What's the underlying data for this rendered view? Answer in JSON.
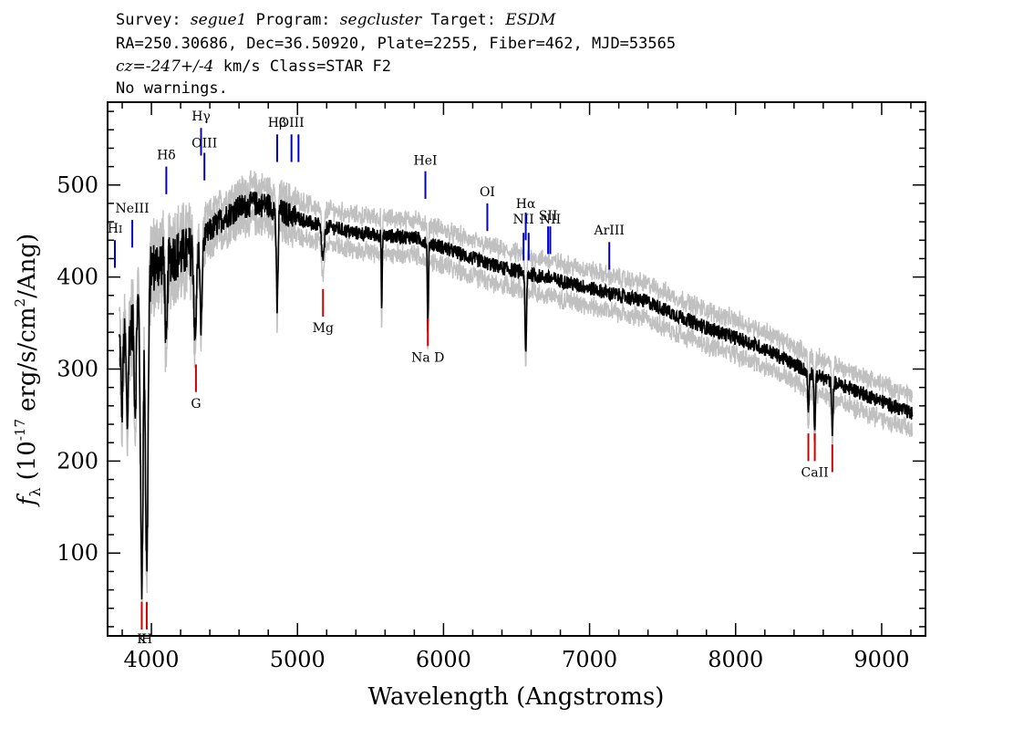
{
  "header": {
    "line1": {
      "survey_label": "Survey:",
      "survey": "segue1",
      "program_label": "Program:",
      "program": "segcluster",
      "target_label": "Target:",
      "target": "ESDM"
    },
    "line2": "RA=250.30686, Dec=36.50920, Plate=2255, Fiber=462, MJD=53565",
    "line3": {
      "cz_label": "cz=",
      "cz_value": "-247+/-4",
      "rest": "km/s Class=STAR F2"
    },
    "line4": "No warnings."
  },
  "chart_data": {
    "type": "line",
    "xlabel": "Wavelength (Angstroms)",
    "ylabel_prefix": "f",
    "ylabel_sub": "λ",
    "ylabel_mid": "(10",
    "ylabel_exp": "-17",
    "ylabel_units": "erg/s/cm",
    "ylabel_exp2": "2",
    "ylabel_end": "/Ang)",
    "xlim": [
      3700,
      9300
    ],
    "ylim": [
      10,
      590
    ],
    "xticks": [
      4000,
      5000,
      6000,
      7000,
      8000,
      9000
    ],
    "xtick_labels": [
      "4000",
      "5000",
      "6000",
      "7000",
      "8000",
      "9000"
    ],
    "yticks": [
      100,
      200,
      300,
      400,
      500
    ],
    "ytick_labels": [
      "100",
      "200",
      "300",
      "400",
      "500"
    ],
    "colors": {
      "flux": "#000000",
      "error": "#c0c0c0",
      "emission": "#0000cc",
      "absorption": "#cc0000"
    },
    "continuum": [
      [
        3780,
        330
      ],
      [
        3830,
        330
      ],
      [
        3880,
        355
      ],
      [
        3920,
        390
      ],
      [
        4000,
        410
      ],
      [
        4100,
        420
      ],
      [
        4200,
        425
      ],
      [
        4300,
        430
      ],
      [
        4400,
        450
      ],
      [
        4500,
        465
      ],
      [
        4600,
        475
      ],
      [
        4700,
        480
      ],
      [
        4800,
        478
      ],
      [
        4900,
        470
      ],
      [
        5000,
        465
      ],
      [
        5100,
        458
      ],
      [
        5200,
        455
      ],
      [
        5400,
        448
      ],
      [
        5600,
        445
      ],
      [
        5800,
        443
      ],
      [
        6000,
        432
      ],
      [
        6200,
        420
      ],
      [
        6400,
        410
      ],
      [
        6600,
        403
      ],
      [
        6800,
        396
      ],
      [
        7000,
        388
      ],
      [
        7200,
        380
      ],
      [
        7400,
        373
      ],
      [
        7600,
        358
      ],
      [
        7800,
        345
      ],
      [
        8000,
        334
      ],
      [
        8200,
        322
      ],
      [
        8400,
        305
      ],
      [
        8600,
        290
      ],
      [
        8800,
        278
      ],
      [
        9000,
        265
      ],
      [
        9200,
        252
      ]
    ],
    "absorption_features": [
      [
        3798,
        260,
        6
      ],
      [
        3835,
        240,
        6
      ],
      [
        3889,
        260,
        7
      ],
      [
        3934,
        70,
        9
      ],
      [
        3968,
        85,
        9
      ],
      [
        4102,
        320,
        7
      ],
      [
        4300,
        330,
        8
      ],
      [
        4340,
        345,
        7
      ],
      [
        4861,
        365,
        6
      ],
      [
        5175,
        420,
        10
      ],
      [
        5577,
        360,
        3
      ],
      [
        5893,
        345,
        4
      ],
      [
        6563,
        315,
        5
      ],
      [
        8498,
        255,
        5
      ],
      [
        8542,
        235,
        5
      ],
      [
        8662,
        235,
        5
      ]
    ],
    "emission_lines": [
      {
        "label": "H",
        "sub": "I",
        "wave": 3750,
        "y0": 410,
        "y1": 440,
        "label_y": 448
      },
      {
        "label": "NeIII",
        "wave": 3869,
        "y0": 432,
        "y1": 462,
        "label_y": 470
      },
      {
        "label": "Hδ",
        "wave": 4102,
        "y0": 490,
        "y1": 520,
        "label_y": 528
      },
      {
        "label": "Hγ",
        "wave": 4340,
        "y0": 532,
        "y1": 562,
        "label_y": 570
      },
      {
        "label": "OIII",
        "wave": 4363,
        "y0": 505,
        "y1": 535,
        "label_y": 541
      },
      {
        "label": "Hβ",
        "wave": 4861,
        "y0": 525,
        "y1": 555,
        "label_y": 563
      },
      {
        "label": "OIII",
        "wave": 4959,
        "y0": 525,
        "y1": 555,
        "label_y": 563
      },
      {
        "label": "",
        "wave": 5007,
        "y0": 525,
        "y1": 555,
        "label_y": 563
      },
      {
        "label": "HeI",
        "wave": 5876,
        "y0": 485,
        "y1": 515,
        "label_y": 522
      },
      {
        "label": "OI",
        "wave": 6300,
        "y0": 450,
        "y1": 480,
        "label_y": 488
      },
      {
        "label": "NII",
        "wave": 6548,
        "y0": 418,
        "y1": 448,
        "label_y": 458
      },
      {
        "label": "Hα",
        "wave": 6563,
        "y0": 440,
        "y1": 470,
        "label_y": 475
      },
      {
        "label": "",
        "wave": 6583,
        "y0": 418,
        "y1": 448,
        "label_y": 458
      },
      {
        "label": "SII",
        "wave": 6716,
        "y0": 425,
        "y1": 455,
        "label_y": 462
      },
      {
        "label": "NII",
        "wave": 6731,
        "y0": 425,
        "y1": 455,
        "label_y": 458
      },
      {
        "label": "ArIII",
        "wave": 7135,
        "y0": 408,
        "y1": 438,
        "label_y": 446
      }
    ],
    "absorption_lines": [
      {
        "label": "K",
        "wave": 3934,
        "y0": 17,
        "y1": 47,
        "label_y": 2
      },
      {
        "label": "H",
        "wave": 3968,
        "y0": 17,
        "y1": 47,
        "label_y": 2
      },
      {
        "label": "G",
        "wave": 4305,
        "y0": 275,
        "y1": 305,
        "label_y": 258
      },
      {
        "label": "Mg",
        "wave": 5175,
        "y0": 357,
        "y1": 387,
        "label_y": 340
      },
      {
        "label": "Na D",
        "wave": 5893,
        "y0": 325,
        "y1": 355,
        "label_y": 308
      },
      {
        "label": "",
        "wave": 8498,
        "y0": 200,
        "y1": 230,
        "label_y": 185
      },
      {
        "label": "CaII",
        "wave": 8542,
        "y0": 200,
        "y1": 230,
        "label_y": 183
      },
      {
        "label": "",
        "wave": 8662,
        "y0": 188,
        "y1": 218,
        "label_y": 183
      }
    ]
  }
}
